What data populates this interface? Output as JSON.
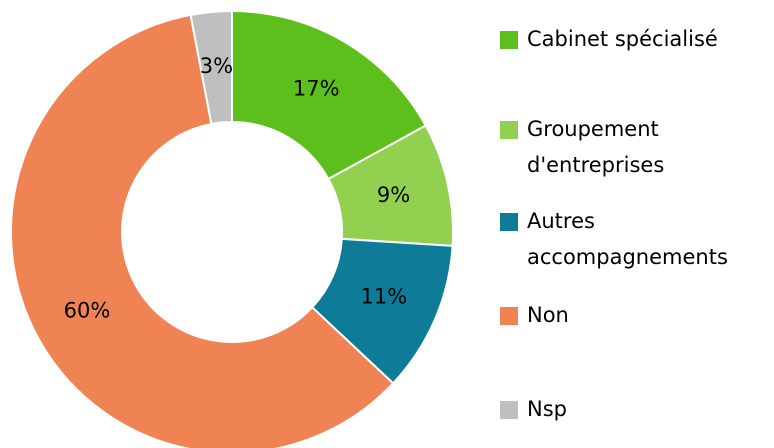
{
  "chart_data": {
    "type": "donut",
    "categories": [
      "Cabinet spécialisé",
      "Groupement d'entreprises",
      "Autres accompagnements",
      "Non",
      "Nsp"
    ],
    "values": [
      17,
      9,
      11,
      60,
      3
    ],
    "value_labels": [
      "17%",
      "9%",
      "11%",
      "60%",
      "3%"
    ],
    "colors": [
      "#5cbf1c",
      "#92d050",
      "#0e7c99",
      "#ef8354",
      "#bfbfbf"
    ],
    "legend": "right"
  }
}
